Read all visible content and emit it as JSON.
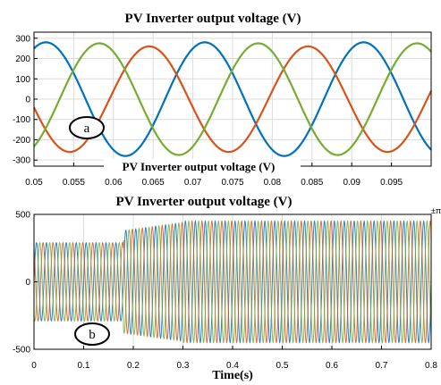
{
  "chart_data": [
    {
      "type": "line",
      "title": "PV Inverter output voltage (V)",
      "xlabel": "",
      "ylabel": "",
      "xlim": [
        0.05,
        0.1
      ],
      "ylim": [
        -330,
        330
      ],
      "xticks": [
        "0.05",
        "0.055",
        "0.06",
        "0.065",
        "0.07",
        "0.075",
        "0.08",
        "0.085",
        "0.09",
        "0.095"
      ],
      "yticks": [
        "300",
        "200",
        "100",
        "0",
        "-100",
        "-200",
        "-300"
      ],
      "grid": true,
      "annotation": "a",
      "series": [
        {
          "color": "#0072BD",
          "amplitude": 280,
          "frequency_hz": 50,
          "phase_deg": 243
        },
        {
          "color": "#D95319",
          "amplitude": 260,
          "frequency_hz": 50,
          "phase_deg": 9
        },
        {
          "color": "#77AC30",
          "amplitude": 275,
          "frequency_hz": 50,
          "phase_deg": 122
        }
      ]
    },
    {
      "type": "line",
      "title": "PV Inverter output voltage (V)",
      "xlabel": "Time(s)",
      "ylabel": "",
      "xlim": [
        0,
        0.8
      ],
      "ylim": [
        -500,
        500
      ],
      "xticks": [
        "0",
        "0.1",
        "0.2",
        "0.3",
        "0.4",
        "0.5",
        "0.6",
        "0.7",
        "0.8"
      ],
      "yticks": [
        "500",
        "0",
        "-500"
      ],
      "grid": true,
      "annotation": "b",
      "corner_glyph": "±π",
      "segments": [
        {
          "t_start": 0,
          "t_end": 0.18,
          "amplitude": 290
        },
        {
          "t_start": 0.18,
          "t_end": 0.3,
          "amplitude_start": 380,
          "amplitude_end": 440
        },
        {
          "t_start": 0.3,
          "t_end": 0.8,
          "amplitude": 450
        }
      ],
      "series_colors": [
        "#0072BD",
        "#D95319",
        "#77AC30"
      ]
    }
  ],
  "overlay_caption": "PV Inverter output voltage (V)",
  "colors": {
    "axes_bg": "#ffffff",
    "grid": "#dcdcdc",
    "frame": "#000000"
  }
}
